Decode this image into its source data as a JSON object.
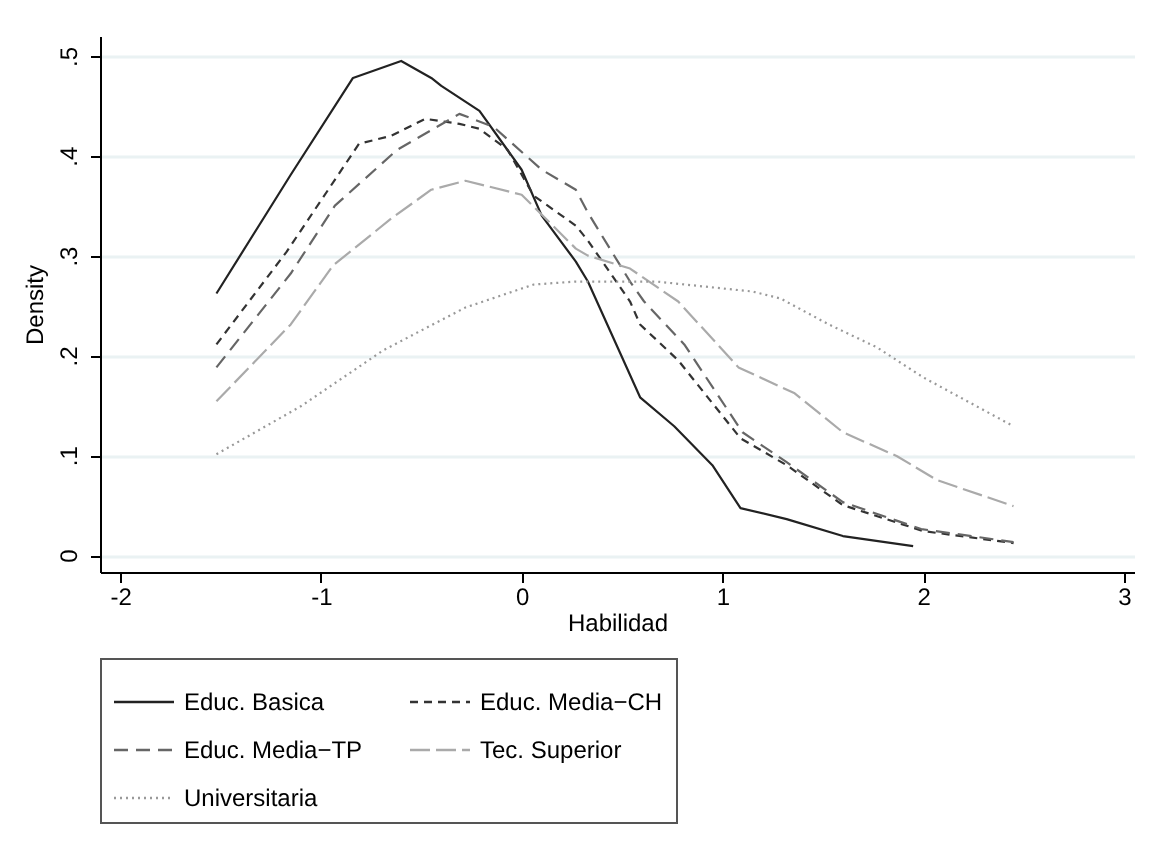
{
  "chart_data": {
    "type": "line",
    "xlabel": "Habilidad",
    "ylabel": "Density",
    "xlim": [
      -2.1,
      3.05
    ],
    "ylim": [
      -0.017,
      0.52
    ],
    "xticks": [
      -2,
      -1,
      0,
      1,
      2,
      3
    ],
    "yticks": [
      {
        "value": 0,
        "label": "0"
      },
      {
        "value": 0.1,
        "label": ".1"
      },
      {
        "value": 0.2,
        "label": ".2"
      },
      {
        "value": 0.3,
        "label": ".3"
      },
      {
        "value": 0.4,
        "label": ".4"
      },
      {
        "value": 0.5,
        "label": ".5"
      }
    ],
    "grid": "y",
    "legend": "bottom",
    "marker": "none",
    "series": [
      {
        "name": "Educ. Basica",
        "color": "#222222",
        "line_style": "solid",
        "x": [
          -1.52,
          -1.15,
          -0.84,
          -0.6,
          -0.45,
          -0.4,
          -0.21,
          0,
          0.1,
          0.27,
          0.33,
          0.59,
          0.76,
          0.95,
          1.09,
          1.32,
          1.6,
          1.95
        ],
        "values": [
          0.262,
          0.381,
          0.478,
          0.495,
          0.478,
          0.47,
          0.445,
          0.386,
          0.34,
          0.294,
          0.274,
          0.158,
          0.129,
          0.09,
          0.047,
          0.036,
          0.019,
          0.009
        ]
      },
      {
        "name": "Educ. Media−CH",
        "color": "#333333",
        "line_style": "dashed",
        "x": [
          -1.52,
          -1.17,
          -0.81,
          -0.65,
          -0.48,
          -0.31,
          -0.21,
          -0.07,
          0.06,
          0.27,
          0.33,
          0.54,
          0.59,
          0.78,
          1.09,
          1.32,
          1.6,
          2.0,
          2.45
        ],
        "values": [
          0.211,
          0.304,
          0.412,
          0.42,
          0.437,
          0.432,
          0.427,
          0.406,
          0.36,
          0.33,
          0.315,
          0.254,
          0.231,
          0.195,
          0.117,
          0.09,
          0.05,
          0.024,
          0.012
        ]
      },
      {
        "name": "Educ. Media−TP",
        "color": "#666666",
        "line_style": "dashed",
        "x": [
          -1.52,
          -1.15,
          -0.93,
          -0.62,
          -0.31,
          -0.14,
          0.1,
          0.27,
          0.33,
          0.54,
          0.61,
          0.81,
          1.1,
          1.32,
          1.6,
          1.99,
          2.45
        ],
        "values": [
          0.188,
          0.282,
          0.35,
          0.406,
          0.442,
          0.429,
          0.386,
          0.366,
          0.343,
          0.274,
          0.254,
          0.211,
          0.123,
          0.093,
          0.053,
          0.026,
          0.013
        ]
      },
      {
        "name": "Tec. Superior",
        "color": "#aaaaaa",
        "line_style": "dashed",
        "x": [
          -1.52,
          -1.15,
          -0.94,
          -0.65,
          -0.45,
          -0.28,
          0,
          0.27,
          0.33,
          0.54,
          0.78,
          1.08,
          1.36,
          1.6,
          1.87,
          2.07,
          2.45
        ],
        "values": [
          0.154,
          0.231,
          0.29,
          0.337,
          0.366,
          0.375,
          0.361,
          0.307,
          0.3,
          0.287,
          0.254,
          0.188,
          0.162,
          0.123,
          0.099,
          0.075,
          0.049
        ]
      },
      {
        "name": "Universitaria",
        "color": "#999999",
        "line_style": "dotted",
        "x": [
          -1.52,
          -1.1,
          -0.69,
          -0.28,
          0.06,
          0.27,
          0.67,
          1.15,
          1.29,
          1.53,
          1.77,
          2.0,
          2.45
        ],
        "values": [
          0.101,
          0.149,
          0.205,
          0.248,
          0.271,
          0.274,
          0.274,
          0.264,
          0.257,
          0.231,
          0.208,
          0.178,
          0.129
        ]
      }
    ]
  }
}
